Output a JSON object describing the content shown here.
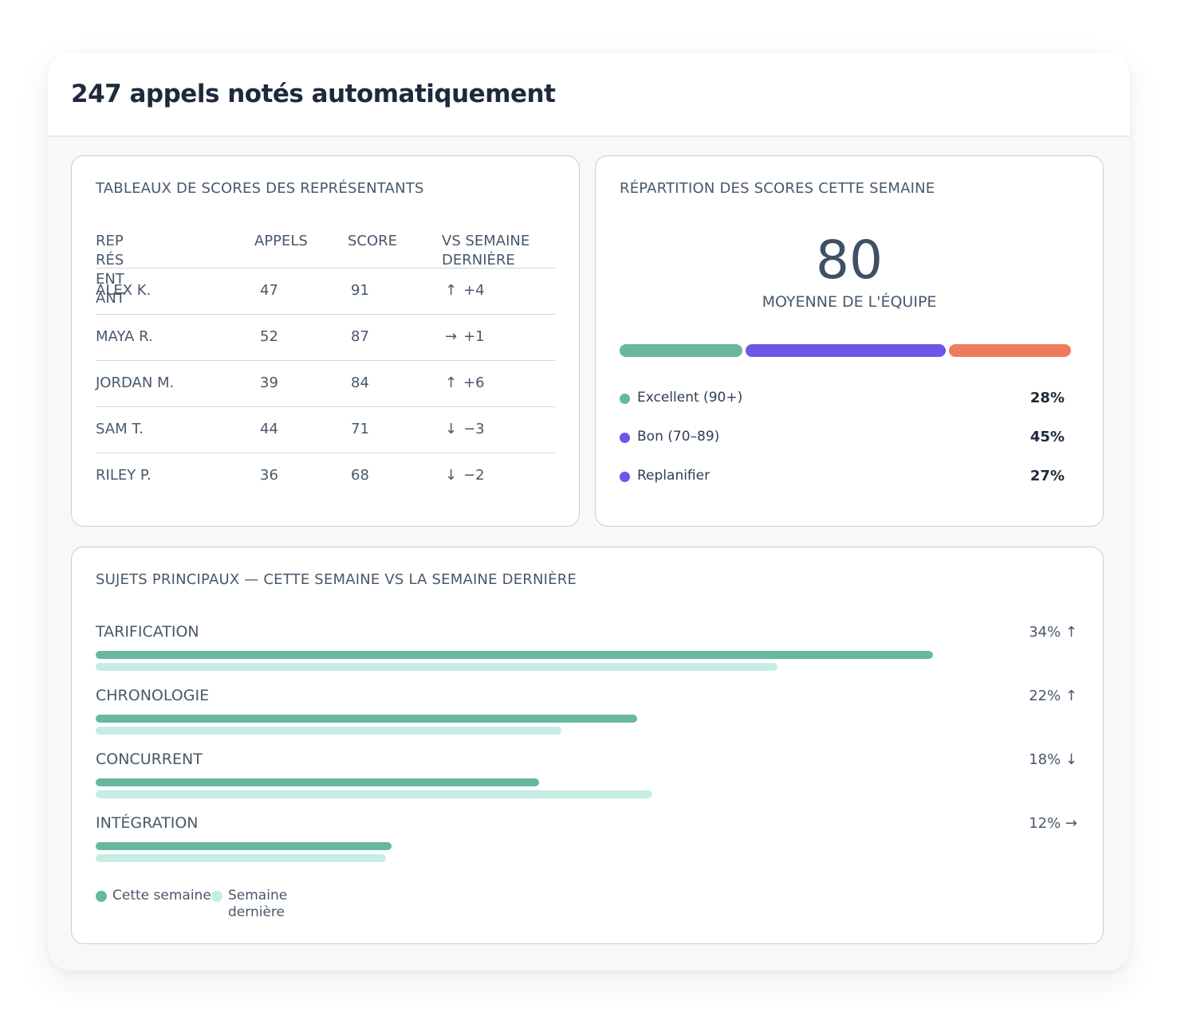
{
  "header": {
    "title": "247 appels notés automatiquement"
  },
  "leaderboard": {
    "title": "TABLEAUX DE SCORES DES REPRÉSENTANTS",
    "columns": {
      "rep": "REP\nRÉS\nENT\nANT",
      "calls": "APPELS",
      "score": "SCORE",
      "delta": "VS SEMAINE\nDERNIÈRE"
    },
    "rows": [
      {
        "name": "ALEX K.",
        "calls": "47",
        "score": "91",
        "arrow": "↑",
        "delta": "+4"
      },
      {
        "name": "MAYA R.",
        "calls": "52",
        "score": "87",
        "arrow": "→",
        "delta": "+1"
      },
      {
        "name": "JORDAN M.",
        "calls": "39",
        "score": "84",
        "arrow": "↑",
        "delta": "+6"
      },
      {
        "name": "SAM T.",
        "calls": "44",
        "score": "71",
        "arrow": "↓",
        "delta": "−3"
      },
      {
        "name": "RILEY P.",
        "calls": "36",
        "score": "68",
        "arrow": "↓",
        "delta": "−2"
      }
    ]
  },
  "distribution": {
    "title": "RÉPARTITION DES SCORES CETTE SEMAINE",
    "average": "80",
    "average_label": "MOYENNE DE L'ÉQUIPE",
    "segments": [
      {
        "label": "Excellent (90+)",
        "pct": "28%",
        "fraction": 0.28,
        "color": "#67b7a1"
      },
      {
        "label": "Bon (70–89)",
        "pct": "45%",
        "fraction": 0.45,
        "color": "#6b57e8"
      },
      {
        "label": "Replanifier",
        "pct": "27%",
        "fraction": 0.27,
        "color": "#ee7b5d"
      }
    ],
    "legend_dot_colors": [
      "#67b7a1",
      "#6b57e8",
      "#6b57e8"
    ]
  },
  "topics": {
    "title": "SUJETS PRINCIPAUX — CETTE SEMAINE VS LA SEMAINE DERNIÈRE",
    "items": [
      {
        "name": "TARIFICATION",
        "value": "34% ↑",
        "this_week": 34,
        "last_week": 27.7
      },
      {
        "name": "CHRONOLOGIE",
        "value": "22% ↑",
        "this_week": 22,
        "last_week": 18.9
      },
      {
        "name": "CONCURRENT",
        "value": "18% ↓",
        "this_week": 18,
        "last_week": 22.6
      },
      {
        "name": "INTÉGRATION",
        "value": "12% →",
        "this_week": 12,
        "last_week": 11.8
      }
    ],
    "legend": {
      "this_week": "Cette semaine",
      "last_week": "Semaine\ndernière"
    },
    "colors": {
      "this_week": "#67b7a1",
      "last_week": "#c5ede4"
    }
  }
}
